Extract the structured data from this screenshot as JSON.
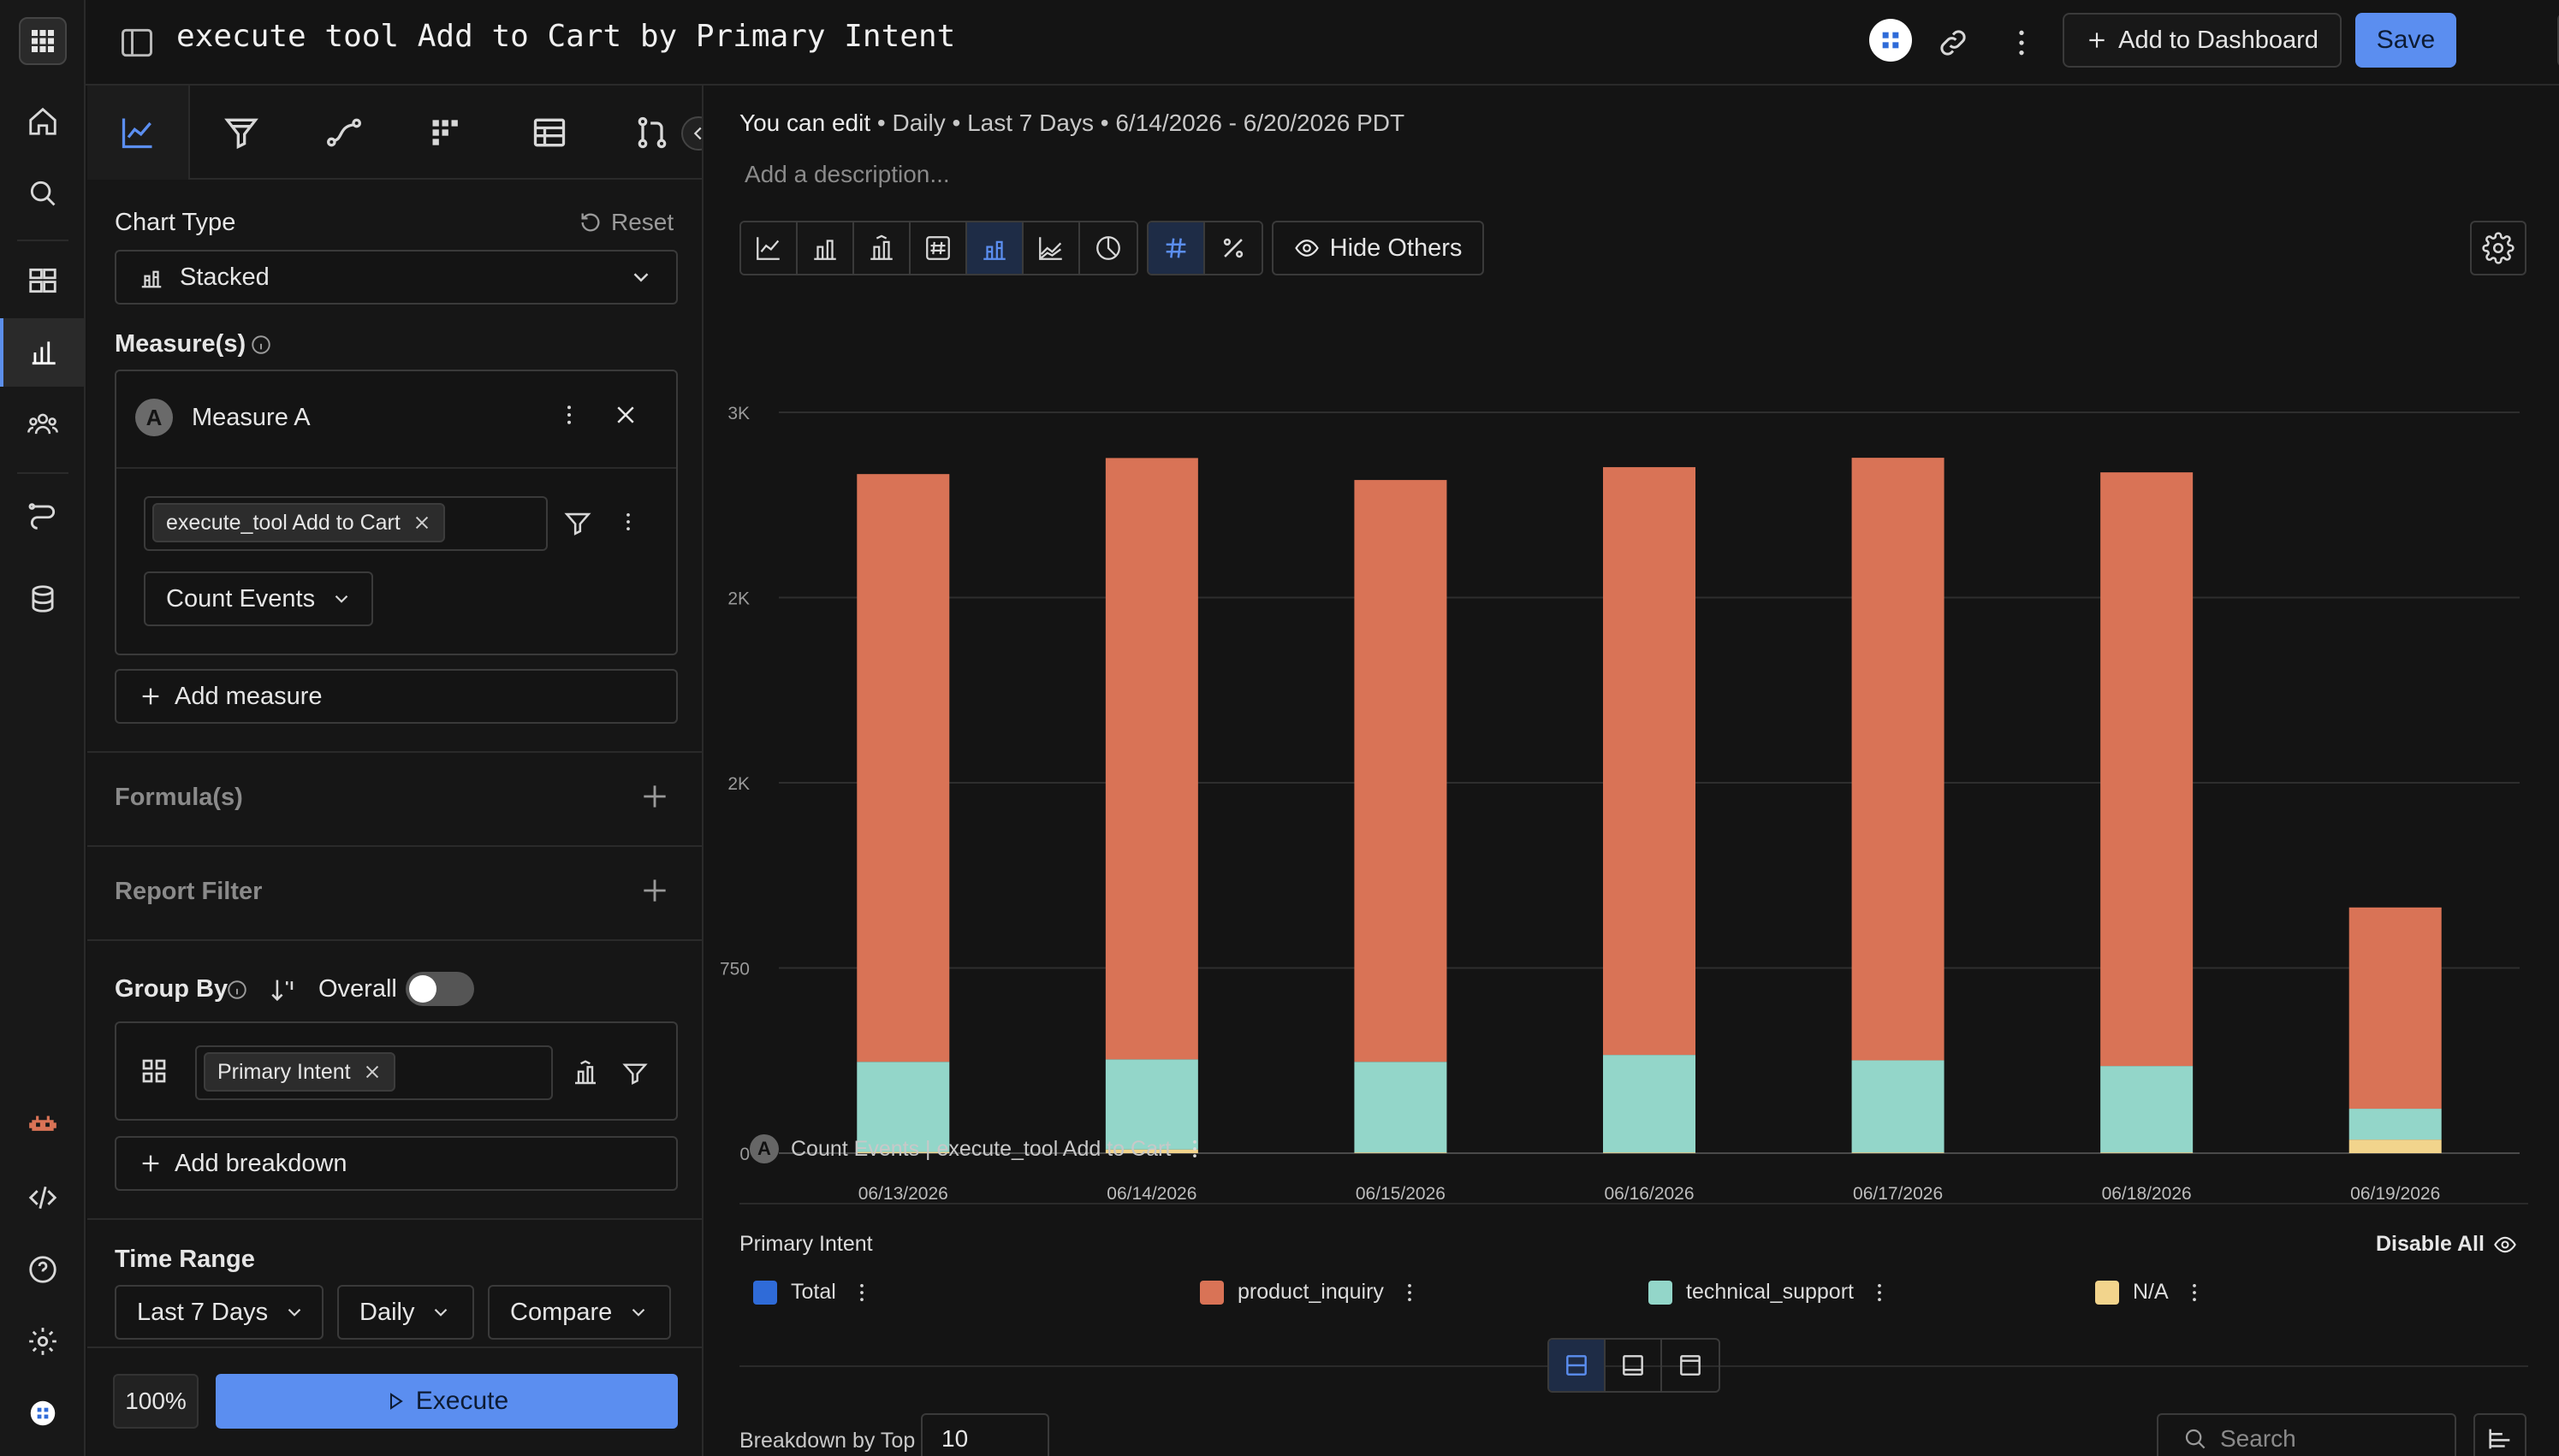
{
  "header": {
    "title": "execute tool Add to Cart by Primary Intent",
    "add_to_dashboard": "Add to Dashboard",
    "save": "Save"
  },
  "icons": {
    "rail": [
      "apps-icon",
      "home-icon",
      "search-icon",
      "boards-icon",
      "reports-icon",
      "users-icon",
      "flows-icon",
      "data-icon",
      "bot-icon",
      "code-icon",
      "help-icon",
      "settings-icon",
      "workspace-icon"
    ],
    "panel_tabs": [
      "insights-icon",
      "funnels-icon",
      "flows-icon",
      "retention-icon",
      "table-icon",
      "impact-icon"
    ]
  },
  "panel": {
    "chart_type_label": "Chart Type",
    "reset": "Reset",
    "chart_type_value": "Stacked",
    "measures_label": "Measure(s)",
    "measure": {
      "letter": "A",
      "name": "Measure A",
      "event_chip": "execute_tool Add to Cart",
      "aggregation": "Count Events"
    },
    "add_measure": "Add measure",
    "formulas": "Formula(s)",
    "report_filter": "Report Filter",
    "group_by": "Group By",
    "overall": "Overall",
    "group_chip": "Primary Intent",
    "add_breakdown": "Add breakdown",
    "time_range": "Time Range",
    "range_value": "Last 7 Days",
    "granularity": "Daily",
    "compare": "Compare",
    "zoom": "100%",
    "execute": "Execute"
  },
  "main": {
    "meta": {
      "edit": "You can edit",
      "granularity": "Daily",
      "range": "Last 7 Days",
      "dates": "6/14/2026 - 6/20/2026 PDT"
    },
    "description_placeholder": "Add a description...",
    "hide_others": "Hide Others",
    "measure_legend_letter": "A",
    "measure_legend": "Count Events | execute_tool Add to Cart",
    "group_by_title": "Primary Intent",
    "disable_all": "Disable All",
    "breakdown_label": "Breakdown by Top",
    "breakdown_value": "10",
    "search_placeholder": "Search"
  },
  "colors": {
    "accent": "#5b8ef0",
    "total": "#2f6bd8",
    "product_inquiry": "#d97356",
    "technical_support": "#93d6c9",
    "na": "#f2d48c"
  },
  "chart_data": {
    "type": "bar",
    "stacked": true,
    "categories": [
      "06/13/2026",
      "06/14/2026",
      "06/15/2026",
      "06/16/2026",
      "06/17/2026",
      "06/18/2026",
      "06/19/2026"
    ],
    "series": [
      {
        "name": "N/A",
        "color": "#f2d48c",
        "values": [
          5,
          15,
          3,
          3,
          3,
          3,
          55
        ]
      },
      {
        "name": "technical_support",
        "color": "#93d6c9",
        "values": [
          365,
          365,
          367,
          395,
          373,
          350,
          125
        ]
      },
      {
        "name": "product_inquiry",
        "color": "#d97356",
        "values": [
          2380,
          2435,
          2356,
          2380,
          2440,
          2404,
          815
        ]
      }
    ],
    "legend": [
      "Total",
      "product_inquiry",
      "technical_support",
      "N/A"
    ],
    "ylim": [
      0,
      3000
    ],
    "yticks": [
      0,
      750,
      1500,
      2250,
      3000
    ],
    "ytick_labels": [
      "0",
      "750",
      "2K",
      "2K",
      "3K"
    ],
    "grid": true
  }
}
